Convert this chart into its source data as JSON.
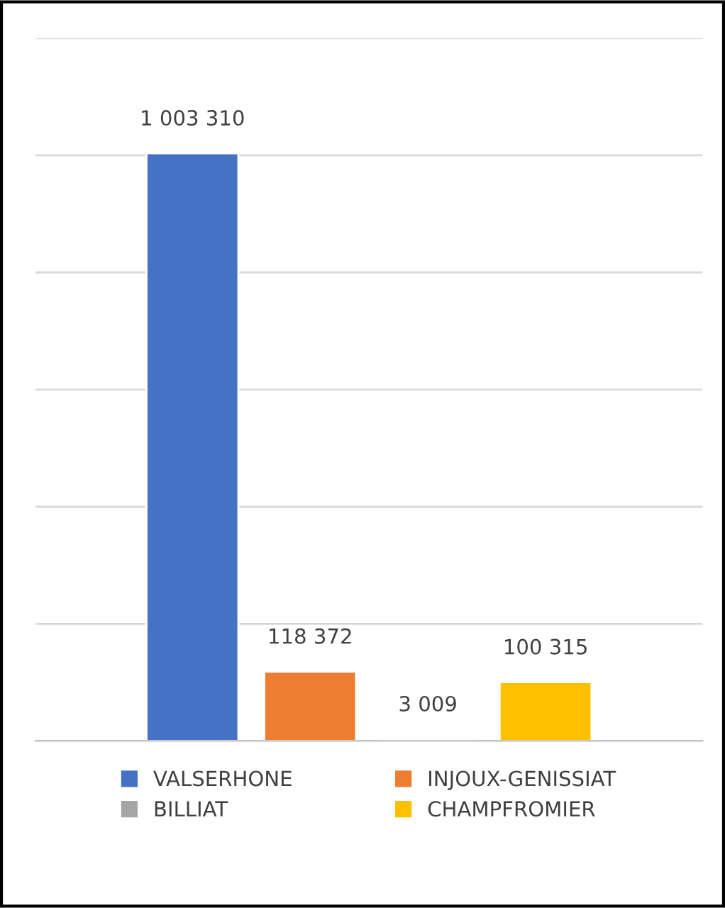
{
  "chart_data": {
    "type": "bar",
    "categories": [
      null
    ],
    "series": [
      {
        "name": "VALSERHONE",
        "color": "#4472c4",
        "values": [
          1003310
        ],
        "value_labels": [
          "1 003 310"
        ]
      },
      {
        "name": "INJOUX-GENISSIAT",
        "color": "#ed7d31",
        "values": [
          118372
        ],
        "value_labels": [
          "118 372"
        ]
      },
      {
        "name": "BILLIAT",
        "color": "#a5a5a5",
        "values": [
          3009
        ],
        "value_labels": [
          "3 009"
        ]
      },
      {
        "name": "CHAMPFROMIER",
        "color": "#ffc000",
        "values": [
          100315
        ],
        "value_labels": [
          "100 315"
        ]
      }
    ],
    "ylim": [
      0,
      1200000
    ],
    "yticks": [
      {
        "value": 0,
        "label": null
      },
      {
        "value": 200000,
        "label": null
      },
      {
        "value": 400000,
        "label": null
      },
      {
        "value": 600000,
        "label": null
      },
      {
        "value": 800000,
        "label": null
      },
      {
        "value": 1000000,
        "label": null
      },
      {
        "value": 1200000,
        "label": null
      }
    ],
    "grid": "y",
    "legend": "bottom"
  }
}
